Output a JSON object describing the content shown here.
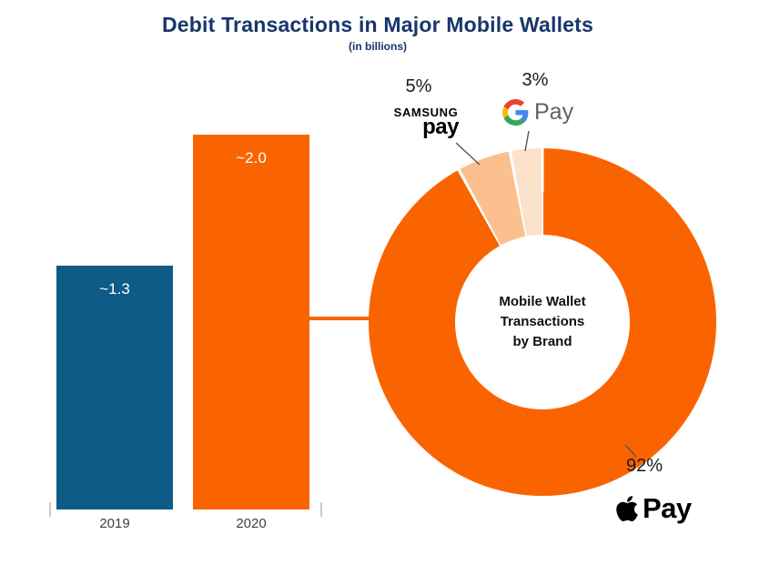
{
  "title": "Debit Transactions in Major Mobile Wallets",
  "subtitle": "(in billions)",
  "colors": {
    "title_navy": "#17366b",
    "bar_blue": "#0f5b87",
    "brand_orange": "#fa6400",
    "samsung_slice": "#fbc08e",
    "google_slice": "#fce1cb"
  },
  "chart_data": [
    {
      "type": "bar",
      "title": "Debit Transactions in Major Mobile Wallets",
      "subtitle": "(in billions)",
      "categories": [
        "2019",
        "2020"
      ],
      "values": [
        1.3,
        2.0
      ],
      "value_labels": [
        "~1.3",
        "~2.0"
      ],
      "bar_colors": [
        "#0f5b87",
        "#fa6400"
      ],
      "ylabel": "",
      "xlabel": "",
      "grid": false
    },
    {
      "type": "pie",
      "donut": true,
      "title": "Mobile Wallet Transactions by Brand",
      "labels": [
        "Apple Pay",
        "Samsung Pay",
        "Google Pay"
      ],
      "values": [
        92,
        5,
        3
      ],
      "percent_labels": [
        "92%",
        "5%",
        "3%"
      ],
      "colors": [
        "#fa6400",
        "#fbc08e",
        "#fce1cb"
      ],
      "center_lines": {
        "l1": "Mobile Wallet",
        "l2": "Transactions",
        "l3": "by Brand"
      }
    }
  ],
  "logos": {
    "samsung_top": "SAMSUNG",
    "samsung_bottom": "pay",
    "google_pay_text": "Pay",
    "apple_pay_text": "Pay"
  }
}
